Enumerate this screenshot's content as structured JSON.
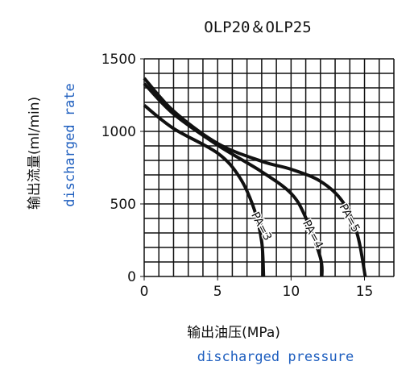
{
  "chart_data": {
    "type": "line",
    "title": "OLP20＆OLP25",
    "y_label": "输出流量(ml/min)",
    "y_label_en": "discharged rate",
    "x_label": "输出油压(MPa)",
    "x_label_en": "discharged pressure",
    "xlim": [
      0,
      17
    ],
    "ylim": [
      0,
      1500
    ],
    "xticks": [
      0,
      5,
      10,
      15
    ],
    "yticks": [
      0,
      500,
      1000,
      1500
    ],
    "xgrid": [
      0,
      1,
      2,
      3,
      4,
      5,
      6,
      7,
      8,
      9,
      10,
      11,
      12,
      13,
      14,
      15,
      16,
      17
    ],
    "ygrid": [
      0,
      100,
      200,
      300,
      400,
      500,
      600,
      700,
      800,
      900,
      1000,
      1100,
      1200,
      1300,
      1400,
      1500
    ],
    "grid": true,
    "series": [
      {
        "name": "PA=3",
        "color": "#111111",
        "x": [
          0,
          2,
          5,
          6.5,
          7.5,
          8,
          8.13
        ],
        "values": [
          1180,
          1020,
          850,
          683,
          460,
          240,
          0
        ]
      },
      {
        "name": "PA=4",
        "color": "#111111",
        "x": [
          0,
          2,
          5,
          8,
          10,
          11,
          12,
          12.1
        ],
        "values": [
          1330,
          1120,
          905,
          722,
          572,
          405,
          128,
          0
        ]
      },
      {
        "name": "PA=5",
        "color": "#111111",
        "x": [
          0,
          2,
          5,
          8,
          10,
          12,
          13.5,
          14.5,
          15.05
        ],
        "values": [
          1367,
          1140,
          917,
          794,
          739,
          656,
          517,
          294,
          0
        ]
      }
    ]
  }
}
